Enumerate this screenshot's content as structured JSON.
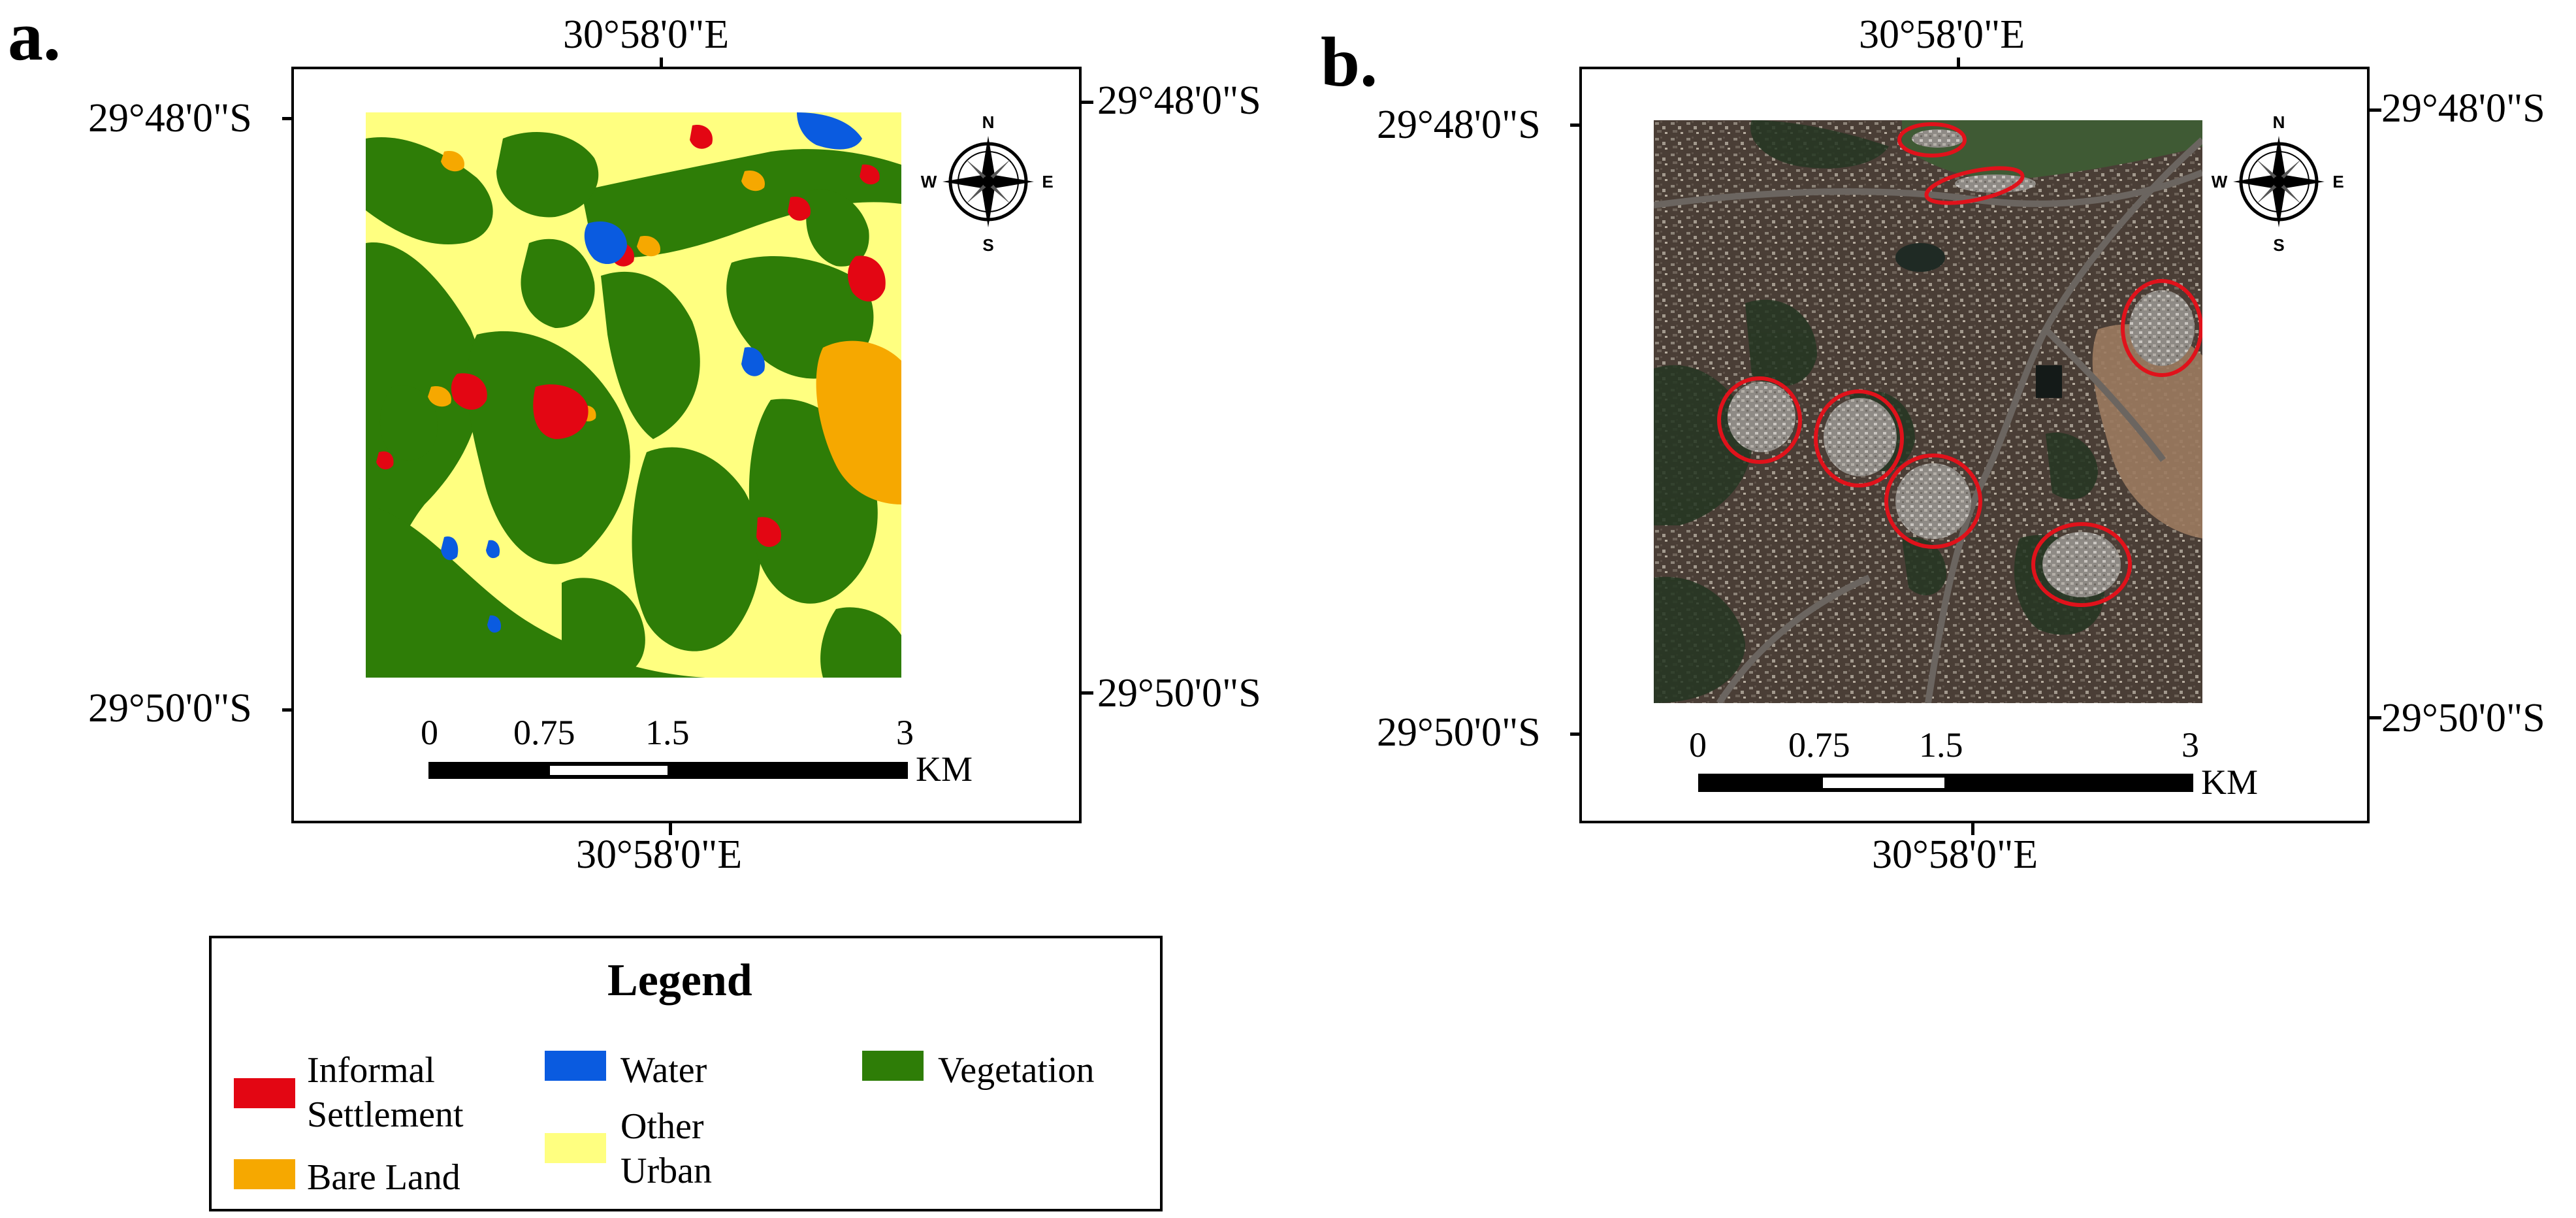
{
  "panel_a": {
    "label": "a.",
    "coords": {
      "top_lon": "30°58'0\"E",
      "bottom_lon": "30°58'0\"E",
      "left_lat_top": "29°48'0\"S",
      "left_lat_bottom": "29°50'0\"S",
      "right_lat_top": "29°48'0\"S",
      "right_lat_bottom": "29°50'0\"S"
    },
    "scale": {
      "ticks": [
        "0",
        "0.75",
        "1.5",
        "3"
      ],
      "unit": "KM"
    },
    "compass": {
      "n": "N",
      "e": "E",
      "s": "S",
      "w": "W"
    }
  },
  "panel_b": {
    "label": "b.",
    "coords": {
      "top_lon": "30°58'0\"E",
      "bottom_lon": "30°58'0\"E",
      "left_lat_top": "29°48'0\"S",
      "left_lat_bottom": "29°50'0\"S",
      "right_lat_top": "29°48'0\"S",
      "right_lat_bottom": "29°50'0\"S"
    },
    "scale": {
      "ticks": [
        "0",
        "0.75",
        "1.5",
        "3"
      ],
      "unit": "KM"
    },
    "compass": {
      "n": "N",
      "e": "E",
      "s": "S",
      "w": "W"
    }
  },
  "legend": {
    "title": "Legend",
    "items": [
      {
        "label_line1": "Informal",
        "label_line2": "Settlement",
        "color": "#e30613"
      },
      {
        "label_line1": "Water",
        "label_line2": "",
        "color": "#0a5be0"
      },
      {
        "label_line1": "Vegetation",
        "label_line2": "",
        "color": "#2e7d07"
      },
      {
        "label_line1": "Bare Land",
        "label_line2": "",
        "color": "#f6a800"
      },
      {
        "label_line1": "Other",
        "label_line2": "Urban",
        "color": "#ffff80"
      }
    ]
  }
}
